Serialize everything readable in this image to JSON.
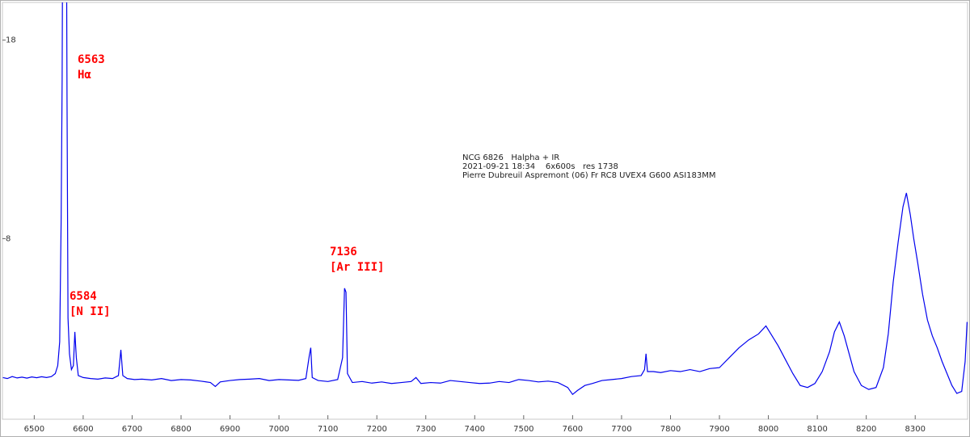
{
  "chart_data": {
    "type": "line",
    "xlim": [
      6435,
      8407
    ],
    "ylim": [
      -1.1,
      19.9
    ],
    "xticks": [
      6500,
      6600,
      6700,
      6800,
      6900,
      7000,
      7100,
      7200,
      7300,
      7400,
      7500,
      7600,
      7700,
      7800,
      7900,
      8000,
      8100,
      8200,
      8300
    ],
    "yticks": [
      8,
      18
    ],
    "annotations": [
      {
        "wavelength": "6563",
        "line": "Hα"
      },
      {
        "wavelength": "6584",
        "line": "[N II]"
      },
      {
        "wavelength": "7136",
        "line": "[Ar III]"
      }
    ],
    "info": [
      "NCG 6826   Halpha + IR",
      "2021-09-21 18:34    6x600s   res 1738",
      "Pierre Dubreuil Aspremont (06) Fr RC8 UVEX4 G600 ASI183MM"
    ],
    "series": [
      {
        "color": "#0000ee",
        "x": [
          6436,
          6445,
          6455,
          6465,
          6475,
          6485,
          6495,
          6505,
          6515,
          6525,
          6535,
          6543,
          6548,
          6552,
          6555,
          6557,
          6559,
          6565,
          6567,
          6569,
          6572,
          6576,
          6580,
          6583,
          6586,
          6590,
          6600,
          6615,
          6630,
          6645,
          6660,
          6672,
          6677,
          6681,
          6690,
          6705,
          6720,
          6740,
          6760,
          6780,
          6800,
          6820,
          6840,
          6860,
          6870,
          6880,
          6900,
          6920,
          6940,
          6960,
          6980,
          7000,
          7020,
          7040,
          7055,
          7062,
          7065,
          7068,
          7080,
          7100,
          7120,
          7130,
          7134,
          7137,
          7140,
          7150,
          7170,
          7190,
          7210,
          7230,
          7250,
          7270,
          7280,
          7290,
          7310,
          7330,
          7350,
          7370,
          7390,
          7410,
          7430,
          7450,
          7470,
          7490,
          7510,
          7530,
          7550,
          7570,
          7590,
          7600,
          7610,
          7625,
          7640,
          7660,
          7680,
          7700,
          7720,
          7740,
          7747,
          7750,
          7753,
          7765,
          7780,
          7800,
          7820,
          7840,
          7860,
          7880,
          7900,
          7920,
          7940,
          7960,
          7980,
          7995,
          8005,
          8020,
          8035,
          8050,
          8065,
          8080,
          8095,
          8110,
          8125,
          8135,
          8145,
          8155,
          8165,
          8175,
          8190,
          8205,
          8220,
          8235,
          8245,
          8255,
          8265,
          8275,
          8282,
          8290,
          8297,
          8305,
          8315,
          8325,
          8335,
          8345,
          8355,
          8365,
          8375,
          8385,
          8395,
          8402,
          8406
        ],
        "values": [
          1.0,
          0.95,
          1.05,
          0.98,
          1.02,
          0.97,
          1.03,
          0.99,
          1.04,
          1.0,
          1.05,
          1.2,
          1.6,
          2.8,
          9,
          16,
          30,
          30,
          15,
          4,
          2.2,
          1.4,
          1.6,
          3.3,
          2.0,
          1.1,
          1.0,
          0.95,
          0.92,
          0.98,
          0.95,
          1.1,
          2.4,
          1.1,
          0.95,
          0.9,
          0.92,
          0.88,
          0.95,
          0.85,
          0.9,
          0.88,
          0.82,
          0.75,
          0.55,
          0.78,
          0.85,
          0.9,
          0.92,
          0.95,
          0.85,
          0.9,
          0.88,
          0.86,
          0.95,
          2.1,
          2.5,
          1.0,
          0.85,
          0.8,
          0.9,
          2.0,
          5.5,
          5.3,
          1.2,
          0.75,
          0.8,
          0.72,
          0.78,
          0.7,
          0.75,
          0.8,
          1.0,
          0.7,
          0.75,
          0.72,
          0.85,
          0.8,
          0.75,
          0.7,
          0.72,
          0.8,
          0.75,
          0.9,
          0.85,
          0.78,
          0.82,
          0.75,
          0.5,
          0.15,
          0.35,
          0.6,
          0.7,
          0.85,
          0.9,
          0.95,
          1.05,
          1.1,
          1.4,
          2.2,
          1.3,
          1.3,
          1.25,
          1.35,
          1.3,
          1.4,
          1.3,
          1.45,
          1.5,
          2.0,
          2.5,
          2.9,
          3.2,
          3.6,
          3.2,
          2.6,
          1.9,
          1.2,
          0.6,
          0.5,
          0.7,
          1.3,
          2.3,
          3.3,
          3.8,
          3.1,
          2.2,
          1.3,
          0.6,
          0.4,
          0.5,
          1.5,
          3.2,
          5.8,
          7.8,
          9.6,
          10.3,
          9.2,
          8.0,
          6.8,
          5.2,
          3.9,
          3.1,
          2.5,
          1.8,
          1.2,
          0.6,
          0.2,
          0.3,
          1.8,
          3.8
        ]
      }
    ]
  }
}
